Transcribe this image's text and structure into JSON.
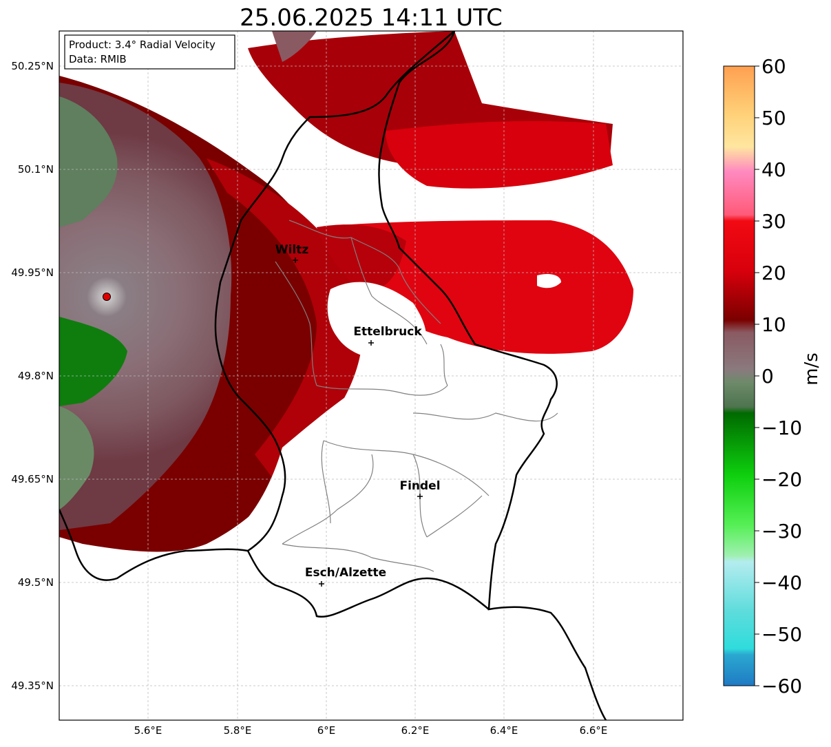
{
  "title": "25.06.2025 14:11 UTC",
  "info_box": {
    "product": "Product: 3.4° Radial Velocity",
    "data": "Data: RMIB"
  },
  "lat_labels": [
    "50.25°N",
    "50.1°N",
    "49.95°N",
    "49.8°N",
    "49.65°N",
    "49.5°N",
    "49.35°N"
  ],
  "lon_labels": [
    "5.6°E",
    "5.8°E",
    "6°E",
    "6.2°E",
    "6.4°E",
    "6.6°E"
  ],
  "cities": [
    {
      "name": "Wiltz"
    },
    {
      "name": "Ettelbruck"
    },
    {
      "name": "Findel"
    },
    {
      "name": "Esch/Alzette"
    }
  ],
  "colorbar": {
    "unit": "m/s",
    "ticks": [
      "60",
      "50",
      "40",
      "30",
      "20",
      "10",
      "0",
      "−10",
      "−20",
      "−30",
      "−40",
      "−50",
      "−60"
    ],
    "min": -60,
    "max": 60,
    "colors": {
      "neg60": "#1f7ac4",
      "neg50": "#2fdcdc",
      "neg40": "#b4ecef",
      "neg30": "#55ef55",
      "neg20": "#0ecf0e",
      "neg10": "#006a00",
      "zero": "#7a8a76",
      "pos5": "#8a5a62",
      "pos10": "#7a0000",
      "pos20": "#c8000a",
      "pos30": "#f20a12",
      "pos40": "#ff8ac0",
      "pos50": "#ffd27a",
      "pos60": "#ffa050"
    }
  },
  "colors": {
    "border": "#000000",
    "cantons": "#808080",
    "grid": "#bbbbbb",
    "radar_marker": "#e00000"
  }
}
